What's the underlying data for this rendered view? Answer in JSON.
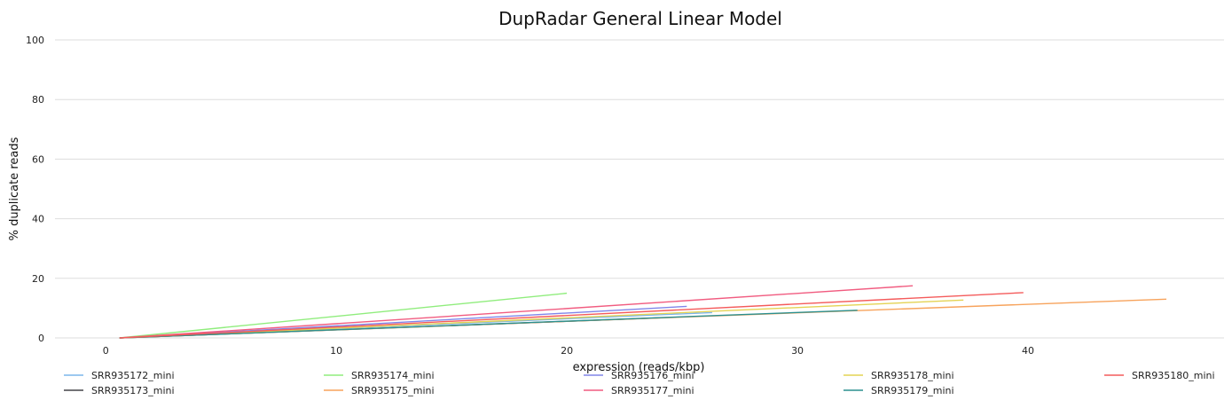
{
  "chart_data": {
    "type": "line",
    "title": "DupRadar General Linear Model",
    "xlabel": "expression (reads/kbp)",
    "ylabel": "% duplicate reads",
    "xlim": [
      -2.2,
      48.5
    ],
    "ylim": [
      0,
      100
    ],
    "xticks": [
      0,
      10,
      20,
      30,
      40
    ],
    "yticks": [
      0,
      20,
      40,
      60,
      80,
      100
    ],
    "grid": "horizontal",
    "legend_position": "bottom",
    "series": [
      {
        "name": "SRR935172_mini",
        "color": "#7cb5ec",
        "x": [
          0.6,
          26.3
        ],
        "y": [
          0,
          8.5
        ]
      },
      {
        "name": "SRR935173_mini",
        "color": "#434348",
        "x": [
          0.6,
          24.2
        ],
        "y": [
          0,
          6.8
        ]
      },
      {
        "name": "SRR935174_mini",
        "color": "#90ed7d",
        "x": [
          0.6,
          20.0
        ],
        "y": [
          0,
          15.0
        ]
      },
      {
        "name": "SRR935175_mini",
        "color": "#f7a35c",
        "x": [
          0.6,
          46.0
        ],
        "y": [
          0,
          13.0
        ]
      },
      {
        "name": "SRR935176_mini",
        "color": "#8085e9",
        "x": [
          0.6,
          25.2
        ],
        "y": [
          0,
          10.6
        ]
      },
      {
        "name": "SRR935177_mini",
        "color": "#f15c80",
        "x": [
          0.6,
          35.0
        ],
        "y": [
          0,
          17.5
        ]
      },
      {
        "name": "SRR935178_mini",
        "color": "#e4d354",
        "x": [
          0.6,
          37.2
        ],
        "y": [
          0,
          12.7
        ]
      },
      {
        "name": "SRR935179_mini",
        "color": "#2b908f",
        "x": [
          0.6,
          32.6
        ],
        "y": [
          0,
          9.3
        ]
      },
      {
        "name": "SRR935180_mini",
        "color": "#f45b5b",
        "x": [
          0.6,
          39.8
        ],
        "y": [
          0,
          15.2
        ]
      }
    ]
  }
}
